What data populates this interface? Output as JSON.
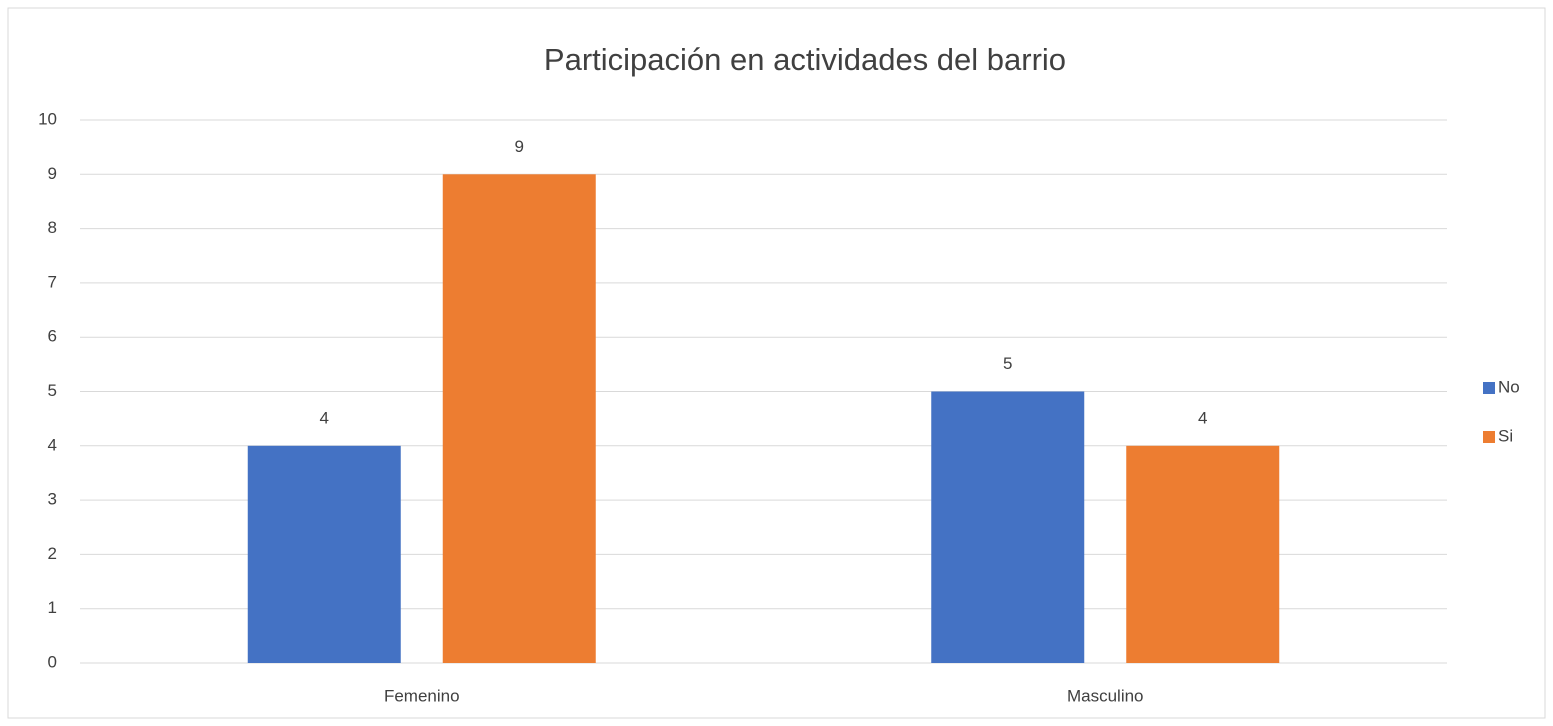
{
  "chart_data": {
    "type": "bar",
    "title": "Participación en actividades del barrio",
    "categories": [
      "Femenino",
      "Masculino"
    ],
    "series": [
      {
        "name": "No",
        "color": "#4472c4",
        "values": [
          4,
          5
        ]
      },
      {
        "name": "Si",
        "color": "#ed7d31",
        "values": [
          9,
          4
        ]
      }
    ],
    "ylim": [
      0,
      10
    ],
    "yticks": [
      0,
      1,
      2,
      3,
      4,
      5,
      6,
      7,
      8,
      9,
      10
    ],
    "grid": true,
    "legend": "right",
    "data_labels": true
  }
}
